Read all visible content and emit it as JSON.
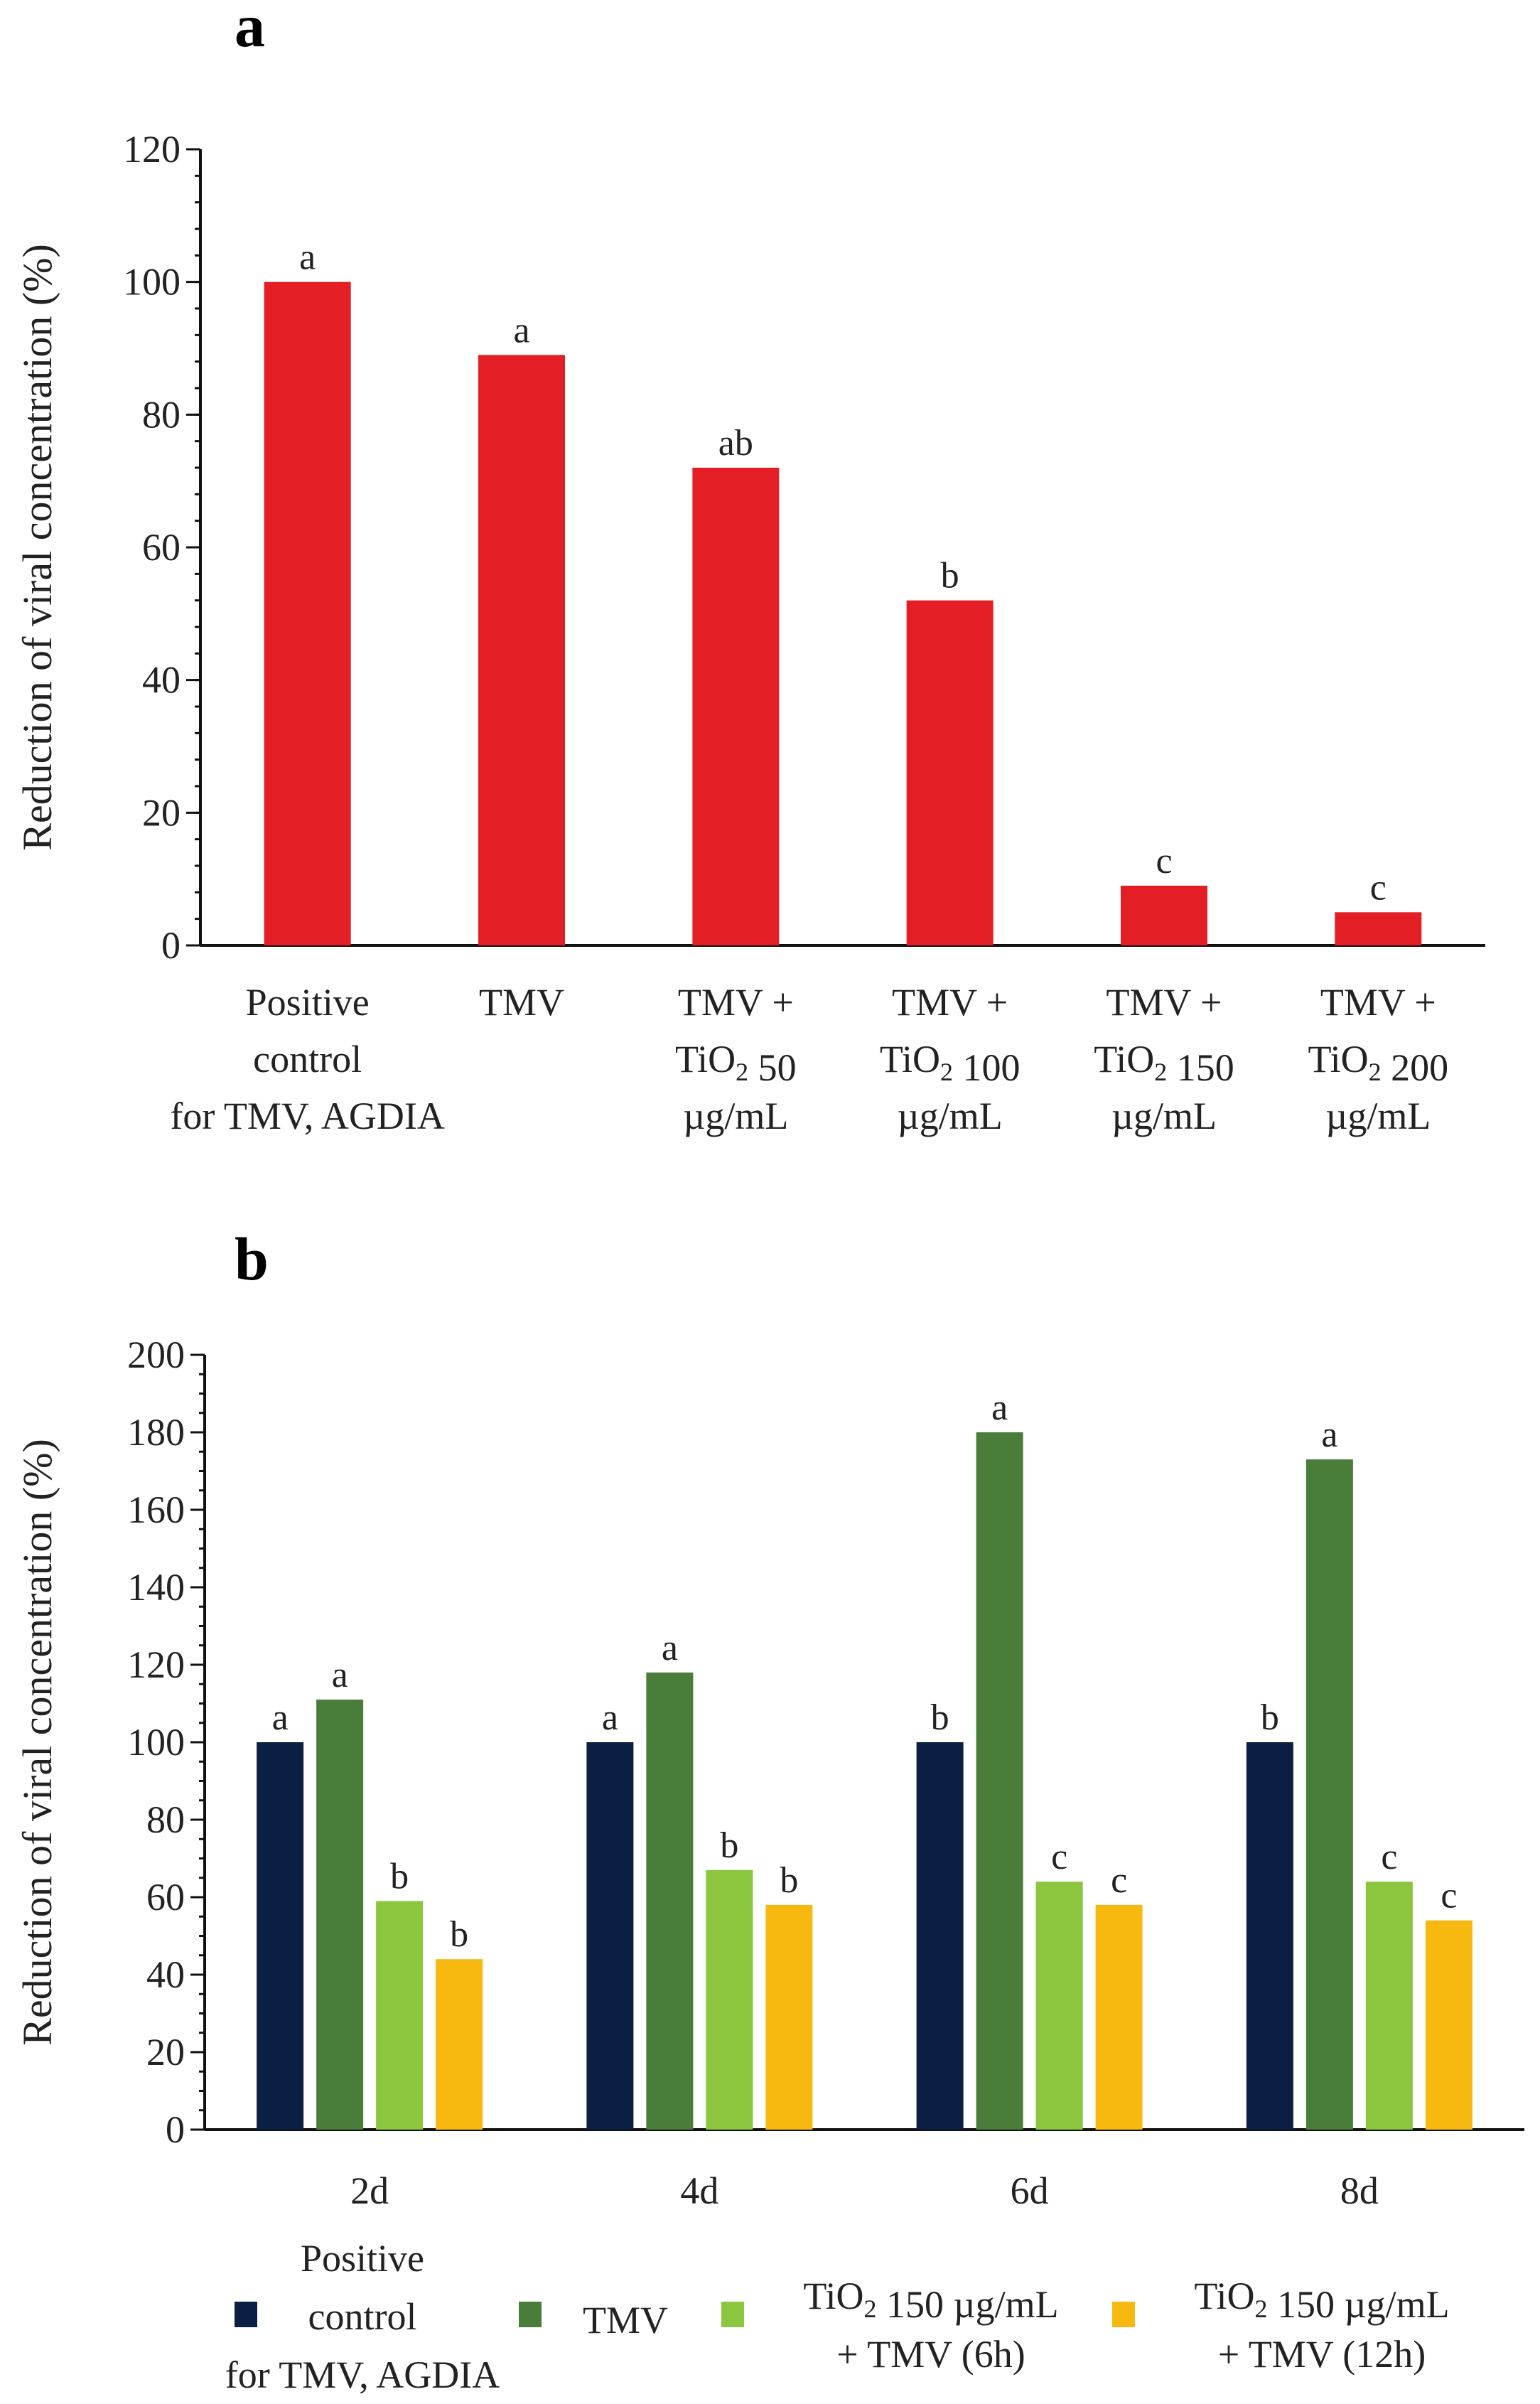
{
  "chart_data": [
    {
      "type": "bar",
      "panel": "a",
      "title": "",
      "xlabel": "",
      "ylabel": "Reduction of viral concentration (%)",
      "ylim": [
        0,
        120
      ],
      "yticks": [
        0,
        20,
        40,
        60,
        80,
        100,
        120
      ],
      "categories": [
        [
          "Positive",
          "control",
          "for TMV, AGDIA"
        ],
        [
          "TMV"
        ],
        [
          "TMV +",
          "TiO2 50",
          "µg/mL"
        ],
        [
          "TMV +",
          "TiO2 100",
          "µg/mL"
        ],
        [
          "TMV +",
          "TiO2 150",
          "µg/mL"
        ],
        [
          "TMV +",
          "TiO2 200",
          "µg/mL"
        ]
      ],
      "values": [
        100,
        89,
        72,
        52,
        9,
        5
      ],
      "labels": [
        "a",
        "a",
        "ab",
        "b",
        "c",
        "c"
      ],
      "color": "#e31e24"
    },
    {
      "type": "bar",
      "panel": "b",
      "title": "",
      "xlabel": "",
      "ylabel": "Reduction of viral concentration (%)",
      "ylim": [
        0,
        200
      ],
      "yticks": [
        0,
        20,
        40,
        60,
        80,
        100,
        120,
        140,
        160,
        180,
        200
      ],
      "categories": [
        "2d",
        "4d",
        "6d",
        "8d"
      ],
      "series": [
        {
          "name": [
            "Positive",
            "control",
            "for TMV, AGDIA"
          ],
          "color": "#0b1f45",
          "values": [
            100,
            100,
            100,
            100
          ],
          "labels": [
            "a",
            "a",
            "b",
            "b"
          ]
        },
        {
          "name": [
            "TMV"
          ],
          "color": "#4a7c3a",
          "values": [
            111,
            118,
            180,
            173
          ],
          "labels": [
            "a",
            "a",
            "a",
            "a"
          ]
        },
        {
          "name": [
            "TiO2 150 µg/mL",
            "+ TMV (6h)"
          ],
          "color": "#8cc63f",
          "values": [
            59,
            67,
            64,
            64
          ],
          "labels": [
            "b",
            "b",
            "c",
            "c"
          ]
        },
        {
          "name": [
            "TiO2 150 µg/mL",
            "+ TMV (12h)"
          ],
          "color": "#f7b90f",
          "values": [
            44,
            58,
            58,
            54
          ],
          "labels": [
            "b",
            "b",
            "c",
            "c"
          ]
        }
      ],
      "legend_position": "bottom"
    }
  ]
}
